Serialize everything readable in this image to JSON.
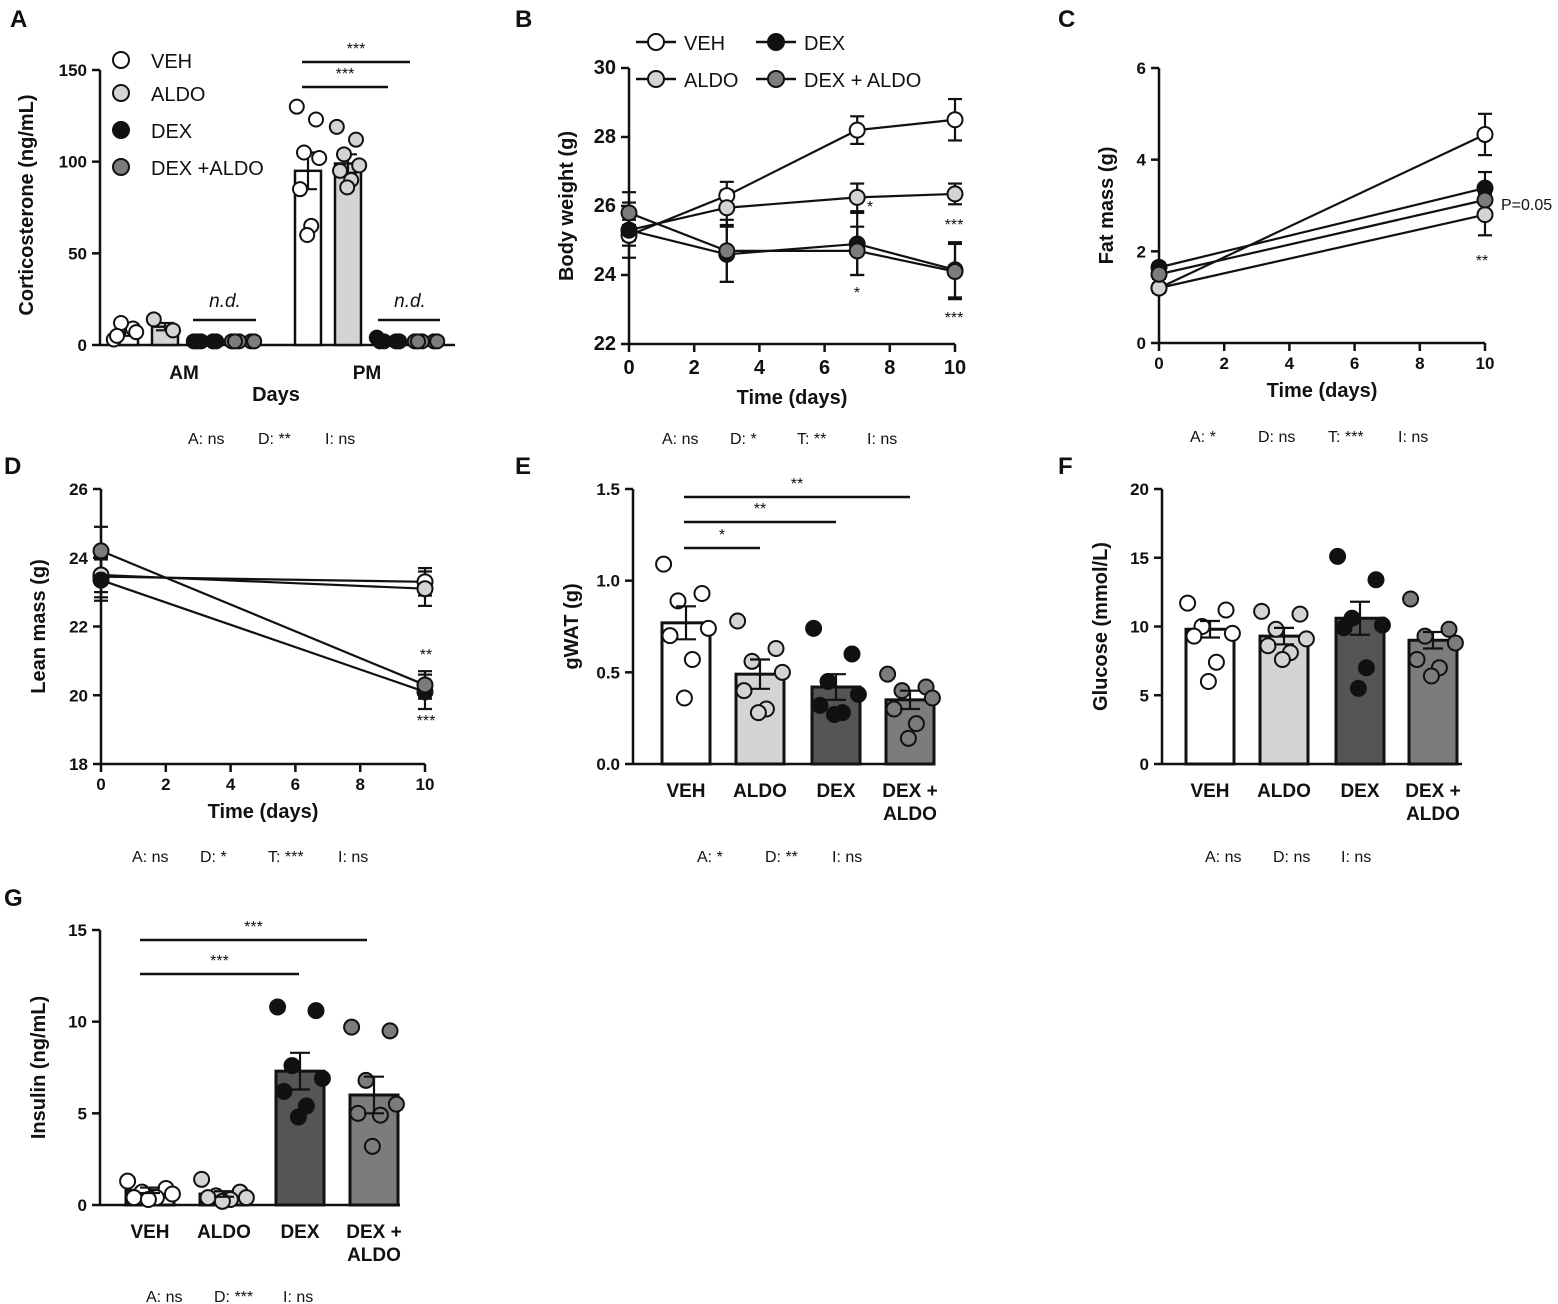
{
  "colors": {
    "VEH": "#ffffff",
    "ALDO": "#d4d4d4",
    "DEX": "#111111",
    "DEX_ALDO": "#7c7c7c",
    "bar_VEH": "#ffffff",
    "bar_ALDO": "#d4d4d4",
    "bar_DEX": "#555555",
    "bar_DEX_ALDO": "#7c7c7c"
  },
  "chart_data": [
    {
      "id": "A",
      "letter": "A",
      "type": "bar",
      "title": "",
      "xlabel": "Days",
      "ylabel": "Corticosterone (ng/mL)",
      "ylim": [
        0,
        150
      ],
      "yticks": [
        "0",
        "50",
        "100",
        "150"
      ],
      "categories": [
        "AM",
        "PM"
      ],
      "series": [
        {
          "name": "VEH",
          "values": [
            7,
            95
          ],
          "sem": [
            2,
            10
          ],
          "points": [
            [
              3,
              9,
              12,
              7,
              5
            ],
            [
              130,
              123,
              105,
              102,
              85,
              65,
              60
            ]
          ]
        },
        {
          "name": "ALDO",
          "values": [
            10,
            99
          ],
          "sem": [
            2,
            5
          ],
          "points": [
            [
              14,
              8
            ],
            [
              119,
              112,
              104,
              98,
              95,
              90,
              86
            ]
          ]
        },
        {
          "name": "DEX",
          "values": [
            2,
            2
          ],
          "sem": [
            0,
            0
          ],
          "points": [
            [
              2,
              2,
              2,
              2,
              2
            ],
            [
              4,
              2,
              2,
              2,
              2
            ]
          ]
        },
        {
          "name": "DEX +ALDO",
          "values": [
            2,
            2
          ],
          "sem": [
            0,
            0
          ],
          "points": [
            [
              2,
              2,
              2,
              2,
              2
            ],
            [
              2,
              2,
              2,
              2,
              2
            ]
          ]
        }
      ],
      "legend": [
        "VEH",
        "ALDO",
        "DEX",
        "DEX +ALDO"
      ],
      "annotations": {
        "nd": [
          "n.d.",
          "n.d."
        ],
        "sig": [
          "***",
          "***"
        ]
      },
      "stats": [
        "A: ns",
        "D: **",
        "I: ns"
      ]
    },
    {
      "id": "B",
      "letter": "B",
      "type": "line",
      "title": "",
      "xlabel": "Time (days)",
      "ylabel": "Body weight (g)",
      "xlim": [
        0,
        10
      ],
      "ylim": [
        22,
        30
      ],
      "xticks": [
        "0",
        "2",
        "4",
        "6",
        "8",
        "10"
      ],
      "yticks": [
        "22",
        "24",
        "26",
        "28",
        "30"
      ],
      "x": [
        0,
        3,
        7,
        10
      ],
      "series": [
        {
          "name": "VEH",
          "values": [
            25.15,
            26.3,
            28.2,
            28.5
          ],
          "sem": [
            0.3,
            0.4,
            0.4,
            0.6
          ]
        },
        {
          "name": "ALDO",
          "values": [
            25.3,
            25.95,
            26.25,
            26.35
          ],
          "sem": [
            0.3,
            0.5,
            0.4,
            0.3
          ]
        },
        {
          "name": "DEX",
          "values": [
            25.3,
            24.6,
            24.9,
            24.15
          ],
          "sem": [
            0.8,
            0.8,
            0.9,
            0.8
          ]
        },
        {
          "name": "DEX + ALDO",
          "values": [
            25.8,
            24.7,
            24.7,
            24.1
          ],
          "sem": [
            0.6,
            0.9,
            0.7,
            0.8
          ]
        }
      ],
      "legend": [
        "VEH",
        "DEX",
        "ALDO",
        "DEX + ALDO"
      ],
      "annotations": {
        "sig": [
          "*",
          "***",
          "*",
          "***"
        ]
      },
      "stats": [
        "A: ns",
        "D: *",
        "T: **",
        "I: ns"
      ]
    },
    {
      "id": "C",
      "letter": "C",
      "type": "line",
      "title": "",
      "xlabel": "Time (days)",
      "ylabel": "Fat mass (g)",
      "xlim": [
        0,
        10
      ],
      "ylim": [
        0,
        6
      ],
      "xticks": [
        "0",
        "2",
        "4",
        "6",
        "8",
        "10"
      ],
      "yticks": [
        "0",
        "2",
        "4",
        "6"
      ],
      "x": [
        0,
        10
      ],
      "series": [
        {
          "name": "VEH",
          "values": [
            1.2,
            4.55
          ],
          "sem": [
            0.1,
            0.45
          ]
        },
        {
          "name": "ALDO",
          "values": [
            1.2,
            2.8
          ],
          "sem": [
            0.1,
            0.45
          ]
        },
        {
          "name": "DEX",
          "values": [
            1.65,
            3.38
          ],
          "sem": [
            0.1,
            0.35
          ]
        },
        {
          "name": "DEX + ALDO",
          "values": [
            1.5,
            3.12
          ],
          "sem": [
            0.1,
            0.35
          ]
        }
      ],
      "annotations": {
        "sig": [
          "P=0.05",
          "**"
        ]
      },
      "stats": [
        "A: *",
        "D: ns",
        "T: ***",
        "I: ns"
      ]
    },
    {
      "id": "D",
      "letter": "D",
      "type": "line",
      "title": "",
      "xlabel": "Time (days)",
      "ylabel": "Lean mass (g)",
      "xlim": [
        0,
        10
      ],
      "ylim": [
        18,
        26
      ],
      "xticks": [
        "0",
        "2",
        "4",
        "6",
        "8",
        "10"
      ],
      "yticks": [
        "18",
        "20",
        "22",
        "24",
        "26"
      ],
      "x": [
        0,
        10
      ],
      "series": [
        {
          "name": "VEH",
          "values": [
            23.45,
            23.3
          ],
          "sem": [
            0.6,
            0.4
          ]
        },
        {
          "name": "ALDO",
          "values": [
            23.5,
            23.1
          ],
          "sem": [
            0.5,
            0.5
          ]
        },
        {
          "name": "DEX",
          "values": [
            23.35,
            20.1
          ],
          "sem": [
            0.6,
            0.5
          ]
        },
        {
          "name": "DEX + ALDO",
          "values": [
            24.2,
            20.3
          ],
          "sem": [
            0.7,
            0.4
          ]
        }
      ],
      "annotations": {
        "sig": [
          "**",
          "***"
        ]
      },
      "stats": [
        "A: ns",
        "D: *",
        "T: ***",
        "I: ns"
      ]
    },
    {
      "id": "E",
      "letter": "E",
      "type": "bar",
      "title": "",
      "xlabel": "",
      "ylabel": "gWAT (g)",
      "ylim": [
        0,
        1.5
      ],
      "yticks": [
        "0.0",
        "0.5",
        "1.0",
        "1.5"
      ],
      "categories": [
        "VEH",
        "ALDO",
        "DEX",
        "DEX + ALDO"
      ],
      "values": [
        0.77,
        0.49,
        0.42,
        0.35
      ],
      "sem": [
        0.09,
        0.08,
        0.07,
        0.05
      ],
      "points": [
        [
          1.09,
          0.93,
          0.89,
          0.74,
          0.7,
          0.57,
          0.36
        ],
        [
          0.78,
          0.63,
          0.56,
          0.5,
          0.4,
          0.3,
          0.28
        ],
        [
          0.74,
          0.6,
          0.45,
          0.38,
          0.32,
          0.28,
          0.27
        ],
        [
          0.49,
          0.42,
          0.4,
          0.36,
          0.3,
          0.22,
          0.14
        ]
      ],
      "annotations": {
        "sig": [
          "*",
          "**",
          "**"
        ]
      },
      "stats": [
        "A: *",
        "D: **",
        "I: ns"
      ]
    },
    {
      "id": "F",
      "letter": "F",
      "type": "bar",
      "title": "",
      "xlabel": "",
      "ylabel": "Glucose (mmol/L)",
      "ylim": [
        0,
        20
      ],
      "yticks": [
        "0",
        "5",
        "10",
        "15",
        "20"
      ],
      "categories": [
        "VEH",
        "ALDO",
        "DEX",
        "DEX + ALDO"
      ],
      "values": [
        9.8,
        9.3,
        10.6,
        9.0
      ],
      "sem": [
        0.6,
        0.6,
        1.2,
        0.6
      ],
      "points": [
        [
          11.7,
          11.2,
          10.0,
          9.5,
          9.3,
          7.4,
          6.0
        ],
        [
          11.1,
          10.9,
          9.8,
          9.1,
          8.6,
          8.1,
          7.6
        ],
        [
          15.1,
          13.4,
          10.6,
          10.1,
          9.9,
          7.0,
          5.5
        ],
        [
          12.0,
          9.8,
          9.3,
          8.8,
          7.6,
          7.0,
          6.4
        ]
      ],
      "stats": [
        "A: ns",
        "D: ns",
        "I: ns"
      ]
    },
    {
      "id": "G",
      "letter": "G",
      "type": "bar",
      "title": "",
      "xlabel": "",
      "ylabel": "Insulin (ng/mL)",
      "ylim": [
        0,
        15
      ],
      "yticks": [
        "0",
        "5",
        "10",
        "15"
      ],
      "categories": [
        "VEH",
        "ALDO",
        "DEX",
        "DEX + ALDO"
      ],
      "values": [
        0.8,
        0.6,
        7.3,
        6.0
      ],
      "sem": [
        0.15,
        0.15,
        1.0,
        1.0
      ],
      "points": [
        [
          1.3,
          0.9,
          0.7,
          0.6,
          0.4,
          0.4,
          0.3
        ],
        [
          1.4,
          0.7,
          0.5,
          0.4,
          0.4,
          0.3,
          0.2
        ],
        [
          10.8,
          10.6,
          7.6,
          6.9,
          6.2,
          5.4,
          4.8
        ],
        [
          9.7,
          9.5,
          6.8,
          5.5,
          5.0,
          4.9,
          3.2
        ]
      ],
      "annotations": {
        "sig": [
          "***",
          "***"
        ]
      },
      "stats": [
        "A: ns",
        "D: ***",
        "I: ns"
      ]
    }
  ]
}
